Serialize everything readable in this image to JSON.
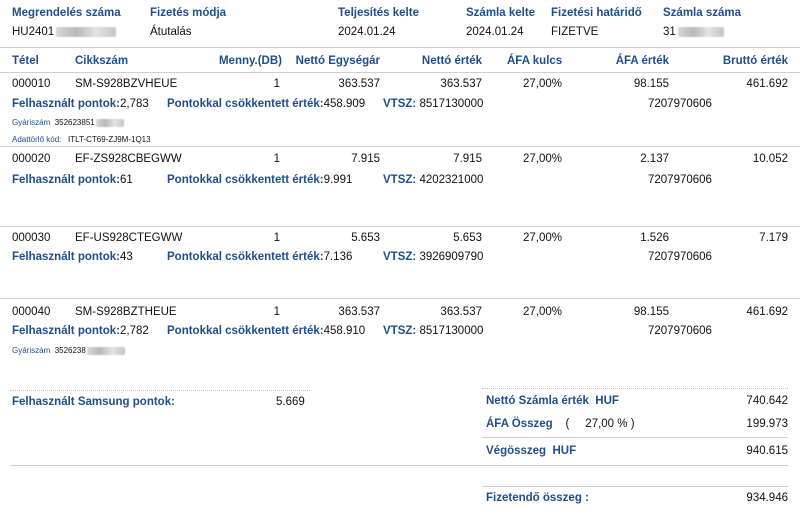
{
  "header": {
    "order_no_label": "Megrendelés száma",
    "order_no_value": "HU2401",
    "payment_label": "Fizetés módja",
    "payment_value": "Átutalás",
    "completion_label": "Teljesítés kelte",
    "completion_value": "2024.01.24",
    "invoice_date_label": "Számla kelte",
    "invoice_date_value": "2024.01.24",
    "due_label": "Fizetési határidő",
    "due_value": "FIZETVE",
    "invoice_no_label": "Számla száma",
    "invoice_no_value": "31"
  },
  "columns": {
    "item": "Tétel",
    "sku": "Cikkszám",
    "qty": "Menny.(DB)",
    "net_unit": "Nettó Egységár",
    "net_value": "Nettó érték",
    "vat_rate": "ÁFA kulcs",
    "vat_value": "ÁFA érték",
    "gross": "Bruttó érték"
  },
  "labels": {
    "points": "Felhasznált pontok:",
    "reduced": "Pontokkal csökkentett érték:",
    "vtsz": "VTSZ:",
    "serial": "Gyáriszám",
    "data_code": "Adattörlő kód:"
  },
  "items": [
    {
      "item": "000010",
      "sku": "SM-S928BZVHEUE",
      "qty": "1",
      "net_unit": "363.537",
      "net_value": "363.537",
      "vat_rate": "27,00%",
      "vat_value": "98.155",
      "gross": "461.692",
      "points": "2,783",
      "reduced": "458.909",
      "vtsz": "8517130000",
      "code": "7207970606",
      "serial": "352623851",
      "data_code": "ITLT-CT69-ZJ9M-1Q13"
    },
    {
      "item": "000020",
      "sku": "EF-ZS928CBEGWW",
      "qty": "1",
      "net_unit": "7.915",
      "net_value": "7.915",
      "vat_rate": "27,00%",
      "vat_value": "2.137",
      "gross": "10.052",
      "points": "61",
      "reduced": "9.991",
      "vtsz": "4202321000",
      "code": "7207970606"
    },
    {
      "item": "000030",
      "sku": "EF-US928CTEGWW",
      "qty": "1",
      "net_unit": "5.653",
      "net_value": "5.653",
      "vat_rate": "27,00%",
      "vat_value": "1.526",
      "gross": "7.179",
      "points": "43",
      "reduced": "7.136",
      "vtsz": "3926909790",
      "code": "7207970606"
    },
    {
      "item": "000040",
      "sku": "SM-S928BZTHEUE",
      "qty": "1",
      "net_unit": "363.537",
      "net_value": "363.537",
      "vat_rate": "27,00%",
      "vat_value": "98.155",
      "gross": "461.692",
      "points": "2,782",
      "reduced": "458.910",
      "vtsz": "8517130000",
      "code": "7207970606",
      "serial": "3526238"
    }
  ],
  "summary": {
    "samsung_points_label": "Felhasznált Samsung pontok:",
    "samsung_points_value": "5.669",
    "net_total_label": "Nettó Számla érték",
    "currency": "HUF",
    "net_total_value": "740.642",
    "vat_total_label": "ÁFA Összeg",
    "vat_open": "(",
    "vat_rate": "27,00 %",
    "vat_close": ")",
    "vat_total_value": "199.973",
    "grand_total_label": "Végösszeg",
    "grand_total_value": "940.615",
    "payable_label": "Fizetendő összeg :",
    "payable_value": "934.946"
  }
}
